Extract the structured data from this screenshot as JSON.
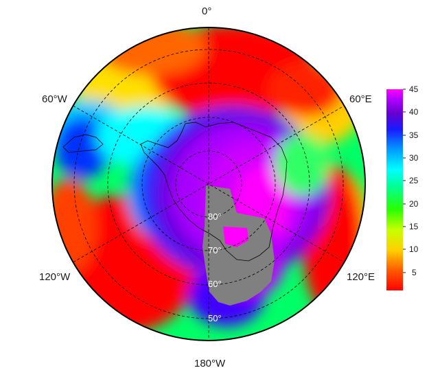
{
  "map": {
    "projection": "south-polar-stereographic",
    "longitude_labels": {
      "top": "0°",
      "upper_left": "60°W",
      "upper_right": "60°E",
      "lower_left": "120°W",
      "lower_right": "120°E",
      "bottom": "180°W"
    },
    "latitude_labels": [
      "80°",
      "70°",
      "60°",
      "50°"
    ],
    "missing_color": "#808080",
    "land_outline_color": "#000000",
    "graticule": "dashed"
  },
  "colorbar": {
    "ticks": [
      "45",
      "40",
      "35",
      "30",
      "25",
      "20",
      "15",
      "10",
      "5"
    ],
    "min": 1,
    "max": 45,
    "colors": [
      "#ff0000",
      "#ff6a00",
      "#ffcc00",
      "#ccff00",
      "#33ff00",
      "#00ff99",
      "#00ffff",
      "#0099ff",
      "#0022ff",
      "#6600cc",
      "#9900ff",
      "#ff00ff"
    ]
  }
}
